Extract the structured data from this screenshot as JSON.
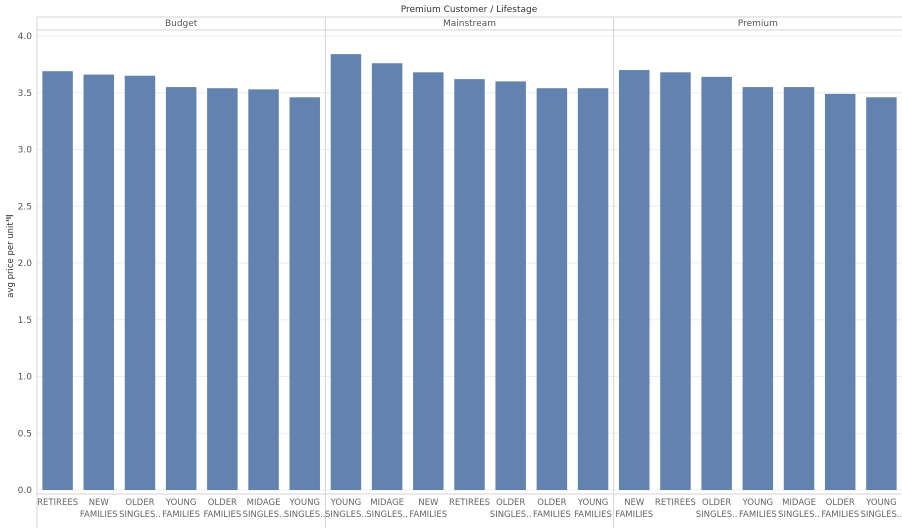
{
  "chart_data": {
    "type": "bar",
    "title": "Premium Customer / Lifestage",
    "ylabel": "avg price per unit",
    "ylim": [
      0,
      4.0
    ],
    "yticks": [
      "0.0",
      "0.5",
      "1.0",
      "1.5",
      "2.0",
      "2.5",
      "3.0",
      "3.5",
      "4.0"
    ],
    "bar_color": "#6283b0",
    "grid": true,
    "panels": [
      {
        "name": "Budget",
        "bars": [
          {
            "label": [
              "RETIREES"
            ],
            "value": 3.69
          },
          {
            "label": [
              "NEW",
              "FAMILIES"
            ],
            "value": 3.66
          },
          {
            "label": [
              "OLDER",
              "SINGLES.."
            ],
            "value": 3.65
          },
          {
            "label": [
              "YOUNG",
              "FAMILIES"
            ],
            "value": 3.55
          },
          {
            "label": [
              "OLDER",
              "FAMILIES"
            ],
            "value": 3.54
          },
          {
            "label": [
              "MIDAGE",
              "SINGLES.."
            ],
            "value": 3.53
          },
          {
            "label": [
              "YOUNG",
              "SINGLES.."
            ],
            "value": 3.46
          }
        ]
      },
      {
        "name": "Mainstream",
        "bars": [
          {
            "label": [
              "YOUNG",
              "SINGLES.."
            ],
            "value": 3.84
          },
          {
            "label": [
              "MIDAGE",
              "SINGLES.."
            ],
            "value": 3.76
          },
          {
            "label": [
              "NEW",
              "FAMILIES"
            ],
            "value": 3.68
          },
          {
            "label": [
              "RETIREES"
            ],
            "value": 3.62
          },
          {
            "label": [
              "OLDER",
              "SINGLES.."
            ],
            "value": 3.6
          },
          {
            "label": [
              "OLDER",
              "FAMILIES"
            ],
            "value": 3.54
          },
          {
            "label": [
              "YOUNG",
              "FAMILIES"
            ],
            "value": 3.54
          }
        ]
      },
      {
        "name": "Premium",
        "bars": [
          {
            "label": [
              "NEW",
              "FAMILIES"
            ],
            "value": 3.7
          },
          {
            "label": [
              "RETIREES"
            ],
            "value": 3.68
          },
          {
            "label": [
              "OLDER",
              "SINGLES.."
            ],
            "value": 3.64
          },
          {
            "label": [
              "YOUNG",
              "FAMILIES"
            ],
            "value": 3.55
          },
          {
            "label": [
              "MIDAGE",
              "SINGLES.."
            ],
            "value": 3.55
          },
          {
            "label": [
              "OLDER",
              "FAMILIES"
            ],
            "value": 3.49
          },
          {
            "label": [
              "YOUNG",
              "SINGLES.."
            ],
            "value": 3.46
          }
        ]
      }
    ]
  },
  "icons": {
    "sort": "sort-icon"
  }
}
